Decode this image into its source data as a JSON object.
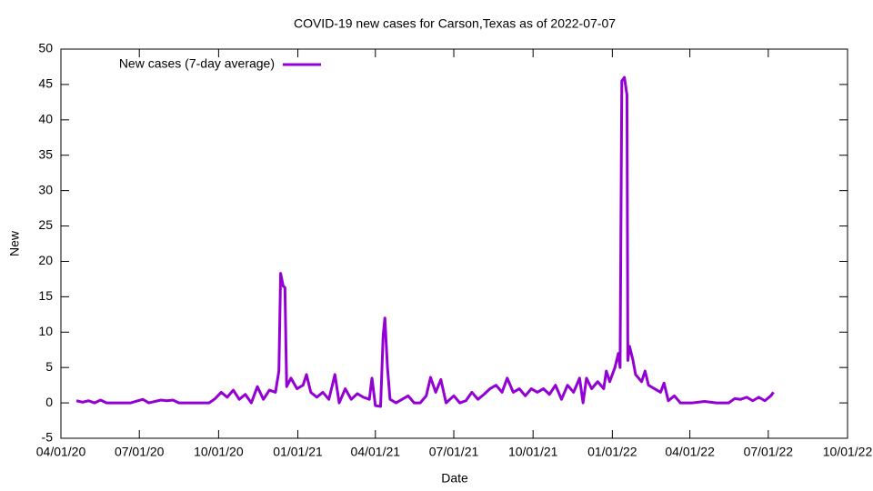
{
  "chart_data": {
    "type": "line",
    "title": "COVID-19 new cases for Carson,Texas as of 2022-07-07",
    "x_label": "Date",
    "y_label": "New",
    "legend": "top-left",
    "grid": false,
    "xlim": [
      "2020-04-01",
      "2022-10-01"
    ],
    "xticks": [
      {
        "value": "2020-04-01",
        "label": "04/01/20"
      },
      {
        "value": "2020-07-01",
        "label": "07/01/20"
      },
      {
        "value": "2020-10-01",
        "label": "10/01/20"
      },
      {
        "value": "2021-01-01",
        "label": "01/01/21"
      },
      {
        "value": "2021-04-01",
        "label": "04/01/21"
      },
      {
        "value": "2021-07-01",
        "label": "07/01/21"
      },
      {
        "value": "2021-10-01",
        "label": "10/01/21"
      },
      {
        "value": "2022-01-01",
        "label": "01/01/22"
      },
      {
        "value": "2022-04-01",
        "label": "04/01/22"
      },
      {
        "value": "2022-07-01",
        "label": "07/01/22"
      },
      {
        "value": "2022-10-01",
        "label": "10/01/22"
      }
    ],
    "ylim": [
      -5,
      50
    ],
    "yticks": [
      -5,
      0,
      5,
      10,
      15,
      20,
      25,
      30,
      35,
      40,
      45,
      50
    ],
    "x": [
      "2020-04-19",
      "2020-04-26",
      "2020-05-03",
      "2020-05-10",
      "2020-05-17",
      "2020-05-24",
      "2020-06-07",
      "2020-06-21",
      "2020-07-05",
      "2020-07-12",
      "2020-07-26",
      "2020-08-02",
      "2020-08-09",
      "2020-08-16",
      "2020-09-06",
      "2020-09-20",
      "2020-09-27",
      "2020-10-04",
      "2020-10-11",
      "2020-10-18",
      "2020-10-25",
      "2020-11-01",
      "2020-11-08",
      "2020-11-15",
      "2020-11-22",
      "2020-11-29",
      "2020-12-06",
      "2020-12-10",
      "2020-12-12",
      "2020-12-15",
      "2020-12-17",
      "2020-12-19",
      "2020-12-24",
      "2020-12-31",
      "2021-01-07",
      "2021-01-11",
      "2021-01-16",
      "2021-01-23",
      "2021-01-30",
      "2021-02-06",
      "2021-02-13",
      "2021-02-18",
      "2021-02-25",
      "2021-03-04",
      "2021-03-11",
      "2021-03-18",
      "2021-03-25",
      "2021-03-28",
      "2021-04-01",
      "2021-04-07",
      "2021-04-10",
      "2021-04-12",
      "2021-04-15",
      "2021-04-18",
      "2021-04-25",
      "2021-05-02",
      "2021-05-09",
      "2021-05-16",
      "2021-05-23",
      "2021-05-30",
      "2021-06-04",
      "2021-06-10",
      "2021-06-16",
      "2021-06-22",
      "2021-07-01",
      "2021-07-08",
      "2021-07-15",
      "2021-07-22",
      "2021-07-29",
      "2021-08-05",
      "2021-08-12",
      "2021-08-19",
      "2021-08-26",
      "2021-09-01",
      "2021-09-08",
      "2021-09-15",
      "2021-09-22",
      "2021-09-29",
      "2021-10-06",
      "2021-10-13",
      "2021-10-20",
      "2021-10-27",
      "2021-11-03",
      "2021-11-10",
      "2021-11-17",
      "2021-11-24",
      "2021-11-28",
      "2021-12-02",
      "2021-12-08",
      "2021-12-15",
      "2021-12-22",
      "2021-12-25",
      "2021-12-29",
      "2022-01-04",
      "2022-01-08",
      "2022-01-10",
      "2022-01-12",
      "2022-01-15",
      "2022-01-18",
      "2022-01-19",
      "2022-01-21",
      "2022-01-25",
      "2022-01-28",
      "2022-02-04",
      "2022-02-08",
      "2022-02-12",
      "2022-02-19",
      "2022-02-26",
      "2022-03-02",
      "2022-03-07",
      "2022-03-14",
      "2022-03-21",
      "2022-04-04",
      "2022-04-18",
      "2022-05-02",
      "2022-05-16",
      "2022-05-23",
      "2022-05-30",
      "2022-06-06",
      "2022-06-13",
      "2022-06-20",
      "2022-06-27",
      "2022-07-04",
      "2022-07-07"
    ],
    "series": [
      {
        "name": "New cases (7-day average)",
        "color": "#9400d3",
        "values": [
          0.3,
          0.1,
          0.3,
          0,
          0.4,
          0,
          0,
          0,
          0.5,
          0,
          0.4,
          0.3,
          0.4,
          0,
          0,
          0,
          0.6,
          1.5,
          0.8,
          1.8,
          0.5,
          1.2,
          0,
          2.3,
          0.5,
          1.8,
          1.5,
          4.5,
          18.3,
          16.5,
          16.3,
          2.3,
          3.5,
          2,
          2.5,
          4,
          1.5,
          0.8,
          1.5,
          0.5,
          4,
          0,
          2,
          0.5,
          1.3,
          0.8,
          0.5,
          3.5,
          -0.4,
          -0.5,
          9.5,
          12,
          5,
          0.5,
          0,
          0.5,
          1,
          0,
          0,
          1,
          3.6,
          1.5,
          3.3,
          0,
          1,
          0,
          0.3,
          1.5,
          0.5,
          1.2,
          2,
          2.5,
          1.5,
          3.5,
          1.5,
          2,
          1,
          2,
          1.5,
          2,
          1.2,
          2.5,
          0.5,
          2.5,
          1.5,
          3.5,
          0,
          3.5,
          2,
          3,
          2,
          4.5,
          3,
          5,
          7,
          5,
          45.5,
          46,
          43.5,
          6,
          8,
          6,
          4,
          3,
          4.5,
          2.5,
          2,
          1.5,
          2.8,
          0.3,
          1,
          0,
          0,
          0.2,
          0,
          0,
          0.6,
          0.5,
          0.8,
          0.3,
          0.8,
          0.3,
          1,
          1.5
        ]
      }
    ]
  }
}
